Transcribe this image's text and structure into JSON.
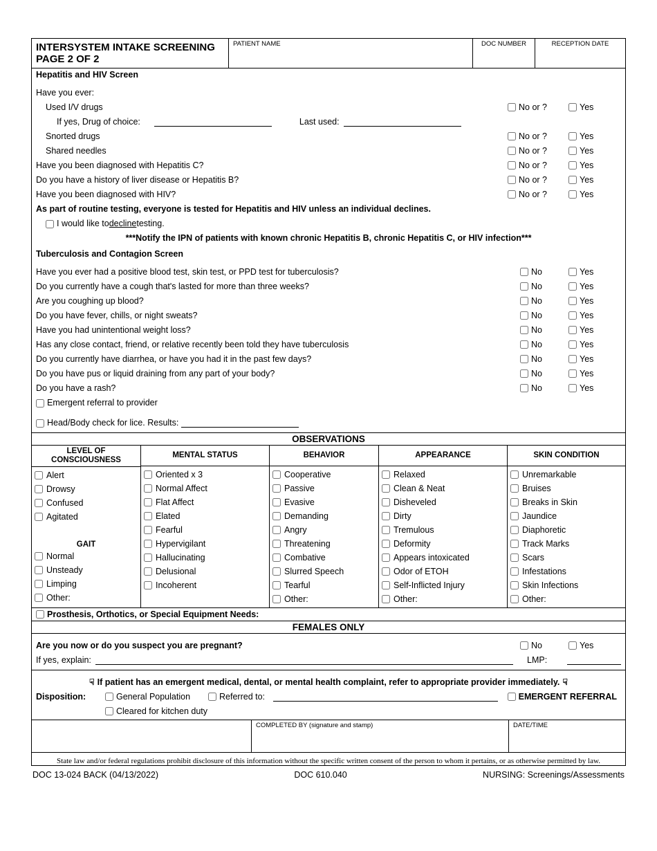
{
  "header": {
    "title_l1": "INTERSYSTEM INTAKE SCREENING",
    "title_l2": "PAGE 2 OF 2",
    "patient_name_label": "PATIENT NAME",
    "doc_number_label": "DOC NUMBER",
    "reception_date_label": "RECEPTION DATE"
  },
  "hep": {
    "section_title": "Hepatitis and HIV Screen",
    "intro": "Have you ever:",
    "q_iv": "Used I/V drugs",
    "q_drug_choice": "If yes, Drug of choice:",
    "q_last_used": "Last used:",
    "q_snort": "Snorted drugs",
    "q_needles": "Shared needles",
    "q_hepc": "Have you been diagnosed with Hepatitis C?",
    "q_liver": "Do you have a history of liver disease or Hepatitis B?",
    "q_hiv": "Have you been diagnosed with HIV?",
    "routine": "As part of routine testing, everyone is tested for Hepatitis and HIV unless an individual declines.",
    "decline_pre": "I would like to ",
    "decline_word": "decline",
    "decline_post": " testing.",
    "notify": "***Notify the IPN of patients with known chronic Hepatitis B, chronic Hepatitis C, or HIV infection***",
    "no_label": "No or ?",
    "yes_label": "Yes"
  },
  "tb": {
    "section_title": "Tuberculosis and Contagion Screen",
    "q1": "Have you ever had a positive blood test, skin test, or PPD test for tuberculosis?",
    "q2": "Do you currently have a cough that's lasted for more than three weeks?",
    "q3": "Are you coughing up blood?",
    "q4": "Do you have fever, chills, or night sweats?",
    "q5": "Have you had unintentional weight loss?",
    "q6": "Has any close contact, friend, or relative recently been told they have tuberculosis",
    "q7": "Do you currently have diarrhea, or have you had it in the past few days?",
    "q8": "Do you have pus or liquid draining from any part of your body?",
    "q9": "Do you have a rash?",
    "emergent": "Emergent referral to provider",
    "lice": "Head/Body check for lice.  Results:",
    "no_label": "No",
    "yes_label": "Yes"
  },
  "obs": {
    "title": "OBSERVATIONS",
    "col0": {
      "h": "LEVEL OF CONSCIOUSNESS",
      "items": [
        "Alert",
        "Drowsy",
        "Confused",
        "Agitated"
      ],
      "gait_h": "GAIT",
      "gait_items": [
        "Normal",
        "Unsteady",
        "Limping",
        "Other:"
      ]
    },
    "col1": {
      "h": "MENTAL STATUS",
      "items": [
        "Oriented x 3",
        "Normal Affect",
        "Flat Affect",
        "Elated",
        "Fearful",
        "Hypervigilant",
        "Hallucinating",
        "Delusional",
        "Incoherent"
      ]
    },
    "col2": {
      "h": "BEHAVIOR",
      "items": [
        "Cooperative",
        "Passive",
        "Evasive",
        "Demanding",
        "Angry",
        "Threatening",
        "Combative",
        "Slurred Speech",
        "Tearful",
        "Other:"
      ]
    },
    "col3": {
      "h": "APPEARANCE",
      "items": [
        "Relaxed",
        "Clean & Neat",
        "Disheveled",
        "Dirty",
        "Tremulous",
        "Deformity",
        "Appears intoxicated",
        "Odor of ETOH",
        "Self-Inflicted Injury",
        "Other:"
      ]
    },
    "col4": {
      "h": "SKIN CONDITION",
      "items": [
        "Unremarkable",
        "Bruises",
        "Breaks in Skin",
        "Jaundice",
        "Diaphoretic",
        "Track Marks",
        "Scars",
        "Infestations",
        "Skin Infections",
        "Other:"
      ]
    },
    "prosth": "Prosthesis, Orthotics, or Special Equipment Needs:"
  },
  "fem": {
    "title": "FEMALES ONLY",
    "q_preg": "Are you now or do you suspect you are pregnant?",
    "explain": "If yes, explain:",
    "lmp": "LMP:",
    "no_label": "No",
    "yes_label": "Yes"
  },
  "disp": {
    "alert": "If patient has an emergent medical, dental, or mental health complaint, refer to appropriate provider immediately.",
    "label": "Disposition:",
    "genpop": "General Population",
    "referred": "Referred to:",
    "emergent": "EMERGENT REFERRAL",
    "kitchen": "Cleared for kitchen duty"
  },
  "sig": {
    "completed": "COMPLETED BY (signature and stamp)",
    "datetime": "DATE/TIME"
  },
  "disclaimer": "State law and/or federal regulations prohibit disclosure of this information without the specific written consent of the person to whom it pertains, or as otherwise permitted by law.",
  "footer": {
    "left": "DOC 13-024 BACK (04/13/2022)",
    "mid": "DOC 610.040",
    "right": "NURSING: Screenings/Assessments"
  }
}
